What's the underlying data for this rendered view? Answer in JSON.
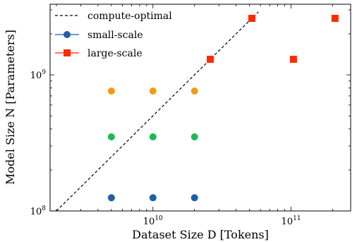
{
  "chart_data": {
    "type": "scatter",
    "xscale": "log",
    "yscale": "log",
    "xlim": [
      1800000000.0,
      270000000000.0
    ],
    "ylim": [
      100000000.0,
      3300000000.0
    ],
    "xlabel": "Dataset Size D [Tokens]",
    "ylabel": "Model Size N [Parameters]",
    "x_ticks": [
      {
        "value": 10000000000.0,
        "base": "10",
        "exp": "10"
      },
      {
        "value": 100000000000.0,
        "base": "10",
        "exp": "11"
      }
    ],
    "y_ticks": [
      {
        "value": 100000000.0,
        "base": "10",
        "exp": "8"
      },
      {
        "value": 1000000000.0,
        "base": "10",
        "exp": "9"
      }
    ],
    "legend": {
      "position": "top-left",
      "entries": [
        {
          "label": "compute-optimal",
          "marker": "dashed-line",
          "color": "#000000"
        },
        {
          "label": "small-scale",
          "marker": "circle",
          "color": "#1f5fa8"
        },
        {
          "label": "large-scale",
          "marker": "square",
          "color": "#ff2a00"
        }
      ]
    },
    "compute_optimal_line": {
      "color": "#000000",
      "points": [
        [
          2000000000.0,
          100000000.0
        ],
        [
          58000000000.0,
          2900000000.0
        ]
      ]
    },
    "series": [
      {
        "name": "small-scale",
        "marker": "circle",
        "points": [
          {
            "x": 5000000000.0,
            "y": 760000000.0,
            "color": "#f39c12"
          },
          {
            "x": 10000000000.0,
            "y": 760000000.0,
            "color": "#f39c12"
          },
          {
            "x": 20000000000.0,
            "y": 760000000.0,
            "color": "#f39c12"
          },
          {
            "x": 5000000000.0,
            "y": 350000000.0,
            "color": "#1db954"
          },
          {
            "x": 10000000000.0,
            "y": 350000000.0,
            "color": "#1db954"
          },
          {
            "x": 20000000000.0,
            "y": 350000000.0,
            "color": "#1db954"
          },
          {
            "x": 5000000000.0,
            "y": 125000000.0,
            "color": "#1f5fa8"
          },
          {
            "x": 10000000000.0,
            "y": 125000000.0,
            "color": "#1f5fa8"
          },
          {
            "x": 20000000000.0,
            "y": 125000000.0,
            "color": "#1f5fa8"
          }
        ]
      },
      {
        "name": "large-scale",
        "marker": "square",
        "color": "#ff2a00",
        "points": [
          {
            "x": 26000000000.0,
            "y": 1300000000.0
          },
          {
            "x": 52000000000.0,
            "y": 2600000000.0
          },
          {
            "x": 104000000000.0,
            "y": 1300000000.0
          },
          {
            "x": 208000000000.0,
            "y": 2600000000.0
          }
        ]
      }
    ]
  }
}
